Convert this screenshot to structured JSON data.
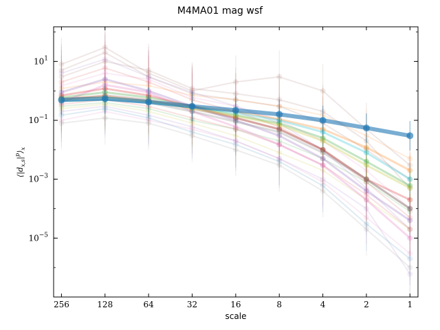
{
  "chart_data": {
    "type": "line",
    "title": "M4MA01 mag wsf",
    "xlabel": "scale",
    "ylabel": "⟨|d_{x,s}|^p⟩_x",
    "x_scale": "log2",
    "x_inverted": true,
    "y_scale": "log",
    "categories": [
      "256",
      "128",
      "64",
      "32",
      "16",
      "8",
      "4",
      "2",
      "1"
    ],
    "x": [
      256,
      128,
      64,
      32,
      16,
      8,
      4,
      2,
      1
    ],
    "xlim": [
      290,
      0.88
    ],
    "ylim": [
      1e-07,
      150
    ],
    "yticks": [
      {
        "value": 10,
        "label": "10^1"
      },
      {
        "value": 0.1,
        "label": "10^-1"
      },
      {
        "value": 0.001,
        "label": "10^-3"
      },
      {
        "value": 1e-05,
        "label": "10^-5"
      }
    ],
    "grid": false,
    "legend": "none",
    "error_bars": true,
    "series": [
      {
        "color": "#1f77b4",
        "emphasis": "strong",
        "values": [
          0.5,
          0.55,
          0.42,
          0.3,
          0.22,
          0.16,
          0.1,
          0.055,
          0.03
        ]
      },
      {
        "color": "#ff7f0e",
        "emphasis": "medium",
        "values": [
          0.55,
          0.65,
          0.45,
          0.3,
          0.2,
          0.11,
          0.05,
          0.012,
          0.002
        ]
      },
      {
        "color": "#2ca02c",
        "emphasis": "medium",
        "values": [
          0.6,
          0.9,
          0.6,
          0.3,
          0.15,
          0.08,
          0.025,
          0.004,
          0.0006
        ]
      },
      {
        "color": "#d62728",
        "emphasis": "medium",
        "values": [
          0.7,
          1.2,
          0.7,
          0.3,
          0.12,
          0.05,
          0.01,
          0.001,
          0.0002
        ]
      },
      {
        "color": "#9467bd",
        "emphasis": "medium",
        "values": [
          0.9,
          2.5,
          1.0,
          0.3,
          0.1,
          0.03,
          0.005,
          0.0004,
          4e-05
        ]
      },
      {
        "color": "#8c564b",
        "emphasis": "medium",
        "values": [
          0.5,
          0.7,
          0.5,
          0.25,
          0.12,
          0.05,
          0.01,
          0.001,
          0.0001
        ]
      },
      {
        "color": "#e377c2",
        "emphasis": "medium",
        "values": [
          0.4,
          1.6,
          0.9,
          0.2,
          0.06,
          0.015,
          0.003,
          0.0002,
          1e-05
        ]
      },
      {
        "color": "#7f7f7f",
        "emphasis": "medium",
        "values": [
          0.45,
          0.5,
          0.4,
          0.2,
          0.09,
          0.04,
          0.008,
          0.001,
          0.0001
        ]
      },
      {
        "color": "#bcbd22",
        "emphasis": "medium",
        "values": [
          0.5,
          0.6,
          0.45,
          0.25,
          0.14,
          0.07,
          0.02,
          0.003,
          0.0005
        ]
      },
      {
        "color": "#17becf",
        "emphasis": "medium",
        "values": [
          0.45,
          0.5,
          0.4,
          0.28,
          0.18,
          0.1,
          0.04,
          0.008,
          0.001
        ]
      },
      {
        "color": "#8c564b",
        "emphasis": "faint",
        "values": [
          5,
          20,
          3,
          0.8,
          0.5,
          0.3,
          0.08,
          0.01,
          0.001
        ]
      },
      {
        "color": "#8c564b",
        "emphasis": "faint",
        "values": [
          8,
          30,
          4,
          1,
          2,
          3,
          1,
          0.05,
          0.003
        ]
      },
      {
        "color": "#e377c2",
        "emphasis": "faint",
        "values": [
          0.1,
          0.2,
          0.1,
          0.05,
          0.02,
          0.005,
          0.0008,
          5e-05,
          3e-06
        ]
      },
      {
        "color": "#d62728",
        "emphasis": "faint",
        "values": [
          2,
          6,
          2,
          0.5,
          0.2,
          0.06,
          0.01,
          0.0008,
          5e-05
        ]
      },
      {
        "color": "#9467bd",
        "emphasis": "faint",
        "values": [
          0.2,
          0.3,
          0.15,
          0.06,
          0.02,
          0.005,
          0.001,
          0.0001,
          6e-07
        ]
      },
      {
        "color": "#2ca02c",
        "emphasis": "faint",
        "values": [
          0.3,
          0.4,
          0.25,
          0.1,
          0.05,
          0.02,
          0.005,
          0.0008,
          8e-05
        ]
      },
      {
        "color": "#ff7f0e",
        "emphasis": "faint",
        "values": [
          1.2,
          2.0,
          1.5,
          0.7,
          0.5,
          0.3,
          0.15,
          0.03,
          0.005
        ]
      },
      {
        "color": "#1f77b4",
        "emphasis": "faint",
        "values": [
          0.15,
          0.25,
          0.12,
          0.04,
          0.015,
          0.004,
          0.0006,
          3e-05,
          2e-06
        ]
      },
      {
        "color": "#8c564b",
        "emphasis": "faint",
        "values": [
          3,
          10,
          5,
          1.2,
          0.8,
          0.5,
          0.2,
          0.02,
          0.0005
        ]
      },
      {
        "color": "#e377c2",
        "emphasis": "faint",
        "values": [
          1.5,
          4,
          2.5,
          0.6,
          0.3,
          0.1,
          0.02,
          0.002,
          0.0001
        ]
      },
      {
        "color": "#7f7f7f",
        "emphasis": "faint",
        "values": [
          0.08,
          0.12,
          0.08,
          0.03,
          0.01,
          0.003,
          0.0004,
          2e-05,
          1e-06
        ]
      },
      {
        "color": "#9467bd",
        "emphasis": "faint",
        "values": [
          4,
          12,
          3,
          0.9,
          0.3,
          0.08,
          0.01,
          0.0005,
          2e-05
        ]
      },
      {
        "color": "#bcbd22",
        "emphasis": "faint",
        "values": [
          0.25,
          0.35,
          0.2,
          0.08,
          0.03,
          0.008,
          0.002,
          0.0002,
          2e-05
        ]
      },
      {
        "color": "#d62728",
        "emphasis": "faint",
        "values": [
          0.35,
          0.5,
          0.3,
          0.12,
          0.05,
          0.015,
          0.003,
          0.0003,
          2e-05
        ]
      }
    ]
  }
}
